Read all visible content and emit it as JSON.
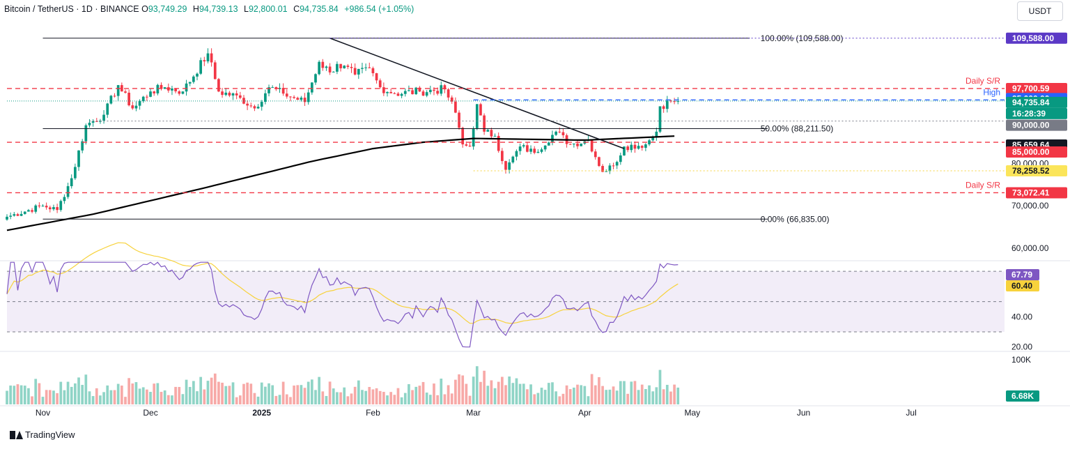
{
  "header": {
    "symbol": "Bitcoin / TetherUS · 1D · BINANCE",
    "o_label": "O",
    "o_value": "93,749.29",
    "h_label": "H",
    "h_value": "94,739.13",
    "l_label": "L",
    "l_value": "92,800.01",
    "c_label": "C",
    "c_value": "94,735.84",
    "change": "+986.54 (+1.05%)"
  },
  "currency_button": "USDT",
  "footer": {
    "brand": "TradingView"
  },
  "chart_data": {
    "type": "candlestick",
    "symbol": "Bitcoin / TetherUS",
    "interval": "1D",
    "exchange": "BINANCE",
    "last_price": 94735.84,
    "countdown": "16:28:39",
    "price_axis": {
      "ylim": [
        57000,
        114000
      ],
      "ticks": [
        "60,000.00",
        "70,000.00",
        "80,000.00"
      ]
    },
    "time_axis": {
      "ticks": [
        "Nov",
        "Dec",
        "2025",
        "Feb",
        "Mar",
        "Apr",
        "May",
        "Jun",
        "Jul"
      ],
      "tick_dates": [
        "2024-11-01",
        "2024-12-01",
        "2025-01-01",
        "2025-02-01",
        "2025-03-01",
        "2025-04-01",
        "2025-05-01",
        "2025-06-01",
        "2025-07-01"
      ],
      "range": [
        "2024-10-22",
        "2025-07-27"
      ]
    },
    "anchors": [
      [
        "2024-10-22",
        67400
      ],
      [
        "2024-11-01",
        70000
      ],
      [
        "2024-11-05",
        69000
      ],
      [
        "2024-11-09",
        76500
      ],
      [
        "2024-11-13",
        89000
      ],
      [
        "2024-11-18",
        91500
      ],
      [
        "2024-11-22",
        98500
      ],
      [
        "2024-11-26",
        93000
      ],
      [
        "2024-12-01",
        97000
      ],
      [
        "2024-12-05",
        98000
      ],
      [
        "2024-12-10",
        97000
      ],
      [
        "2024-12-17",
        106000
      ],
      [
        "2024-12-20",
        97000
      ],
      [
        "2024-12-26",
        95500
      ],
      [
        "2024-12-30",
        93000
      ],
      [
        "2025-01-03",
        98000
      ],
      [
        "2025-01-07",
        96500
      ],
      [
        "2025-01-13",
        94500
      ],
      [
        "2025-01-17",
        104000
      ],
      [
        "2025-01-20",
        101500
      ],
      [
        "2025-01-22",
        103500
      ],
      [
        "2025-01-27",
        101000
      ],
      [
        "2025-01-31",
        102500
      ],
      [
        "2025-02-03",
        98000
      ],
      [
        "2025-02-07",
        96500
      ],
      [
        "2025-02-14",
        97000
      ],
      [
        "2025-02-21",
        97500
      ],
      [
        "2025-02-24",
        92000
      ],
      [
        "2025-02-26",
        84500
      ],
      [
        "2025-02-28",
        84000
      ],
      [
        "2025-03-02",
        94000
      ],
      [
        "2025-03-04",
        87500
      ],
      [
        "2025-03-07",
        86500
      ],
      [
        "2025-03-10",
        78500
      ],
      [
        "2025-03-14",
        84000
      ],
      [
        "2025-03-18",
        82500
      ],
      [
        "2025-03-24",
        87500
      ],
      [
        "2025-03-28",
        84500
      ],
      [
        "2025-04-02",
        85500
      ],
      [
        "2025-04-06",
        78000
      ],
      [
        "2025-04-09",
        79500
      ],
      [
        "2025-04-12",
        84000
      ],
      [
        "2025-04-18",
        84500
      ],
      [
        "2025-04-21",
        87500
      ],
      [
        "2025-04-22",
        93500
      ],
      [
        "2025-04-25",
        94700
      ],
      [
        "2025-04-27",
        94735.84
      ]
    ],
    "ma200": [
      [
        "2024-10-22",
        64200
      ],
      [
        "2024-11-15",
        68000
      ],
      [
        "2024-12-15",
        74000
      ],
      [
        "2025-01-15",
        80500
      ],
      [
        "2025-02-01",
        83500
      ],
      [
        "2025-02-15",
        85000
      ],
      [
        "2025-03-01",
        85900
      ],
      [
        "2025-04-01",
        85500
      ],
      [
        "2025-04-27",
        86500
      ]
    ],
    "trendline": [
      [
        "2025-01-20",
        109588
      ],
      [
        "2025-04-12",
        83500
      ]
    ],
    "fibonacci": [
      {
        "level": "100.00%",
        "price": 109588.0,
        "label": "100.00% (109,588.00)"
      },
      {
        "level": "50.00%",
        "price": 88211.5,
        "label": "50.00% (88,211.50)"
      },
      {
        "level": "0.00%",
        "price": 66835.0,
        "label": "0.00% (66,835.00)"
      }
    ],
    "lines": [
      {
        "price": 109588.0,
        "label": "109,588.00",
        "style": "dotted",
        "color": "#5b39c6"
      },
      {
        "price": 97700.59,
        "label": "97,700.59",
        "style": "dashed",
        "color": "#f23645",
        "annotation": "Daily S/R"
      },
      {
        "price": 95000.0,
        "label": "95,000.00",
        "style": "dashed",
        "color": "#2962ff",
        "annotation": "High"
      },
      {
        "price": 90000.0,
        "label": "90,000.00",
        "style": "dotted",
        "color": "#787b86"
      },
      {
        "price": 85659.64,
        "label": "85,659.64",
        "style": "ma",
        "color": "#000000"
      },
      {
        "price": 85000.0,
        "label": "85,000.00",
        "style": "dashed",
        "color": "#f23645"
      },
      {
        "price": 78258.52,
        "label": "78,258.52",
        "style": "dotted",
        "color": "#f7d23c"
      },
      {
        "price": 73072.41,
        "label": "73,072.41",
        "style": "dashed",
        "color": "#f23645",
        "annotation": "Daily S/R"
      }
    ],
    "rsi": {
      "ticks": [
        "40.00",
        "20.00"
      ],
      "rsi_value": "67.79",
      "ma_value": "60.40",
      "band_upper": 70,
      "band_mid": 50,
      "band_lower": 30,
      "ylim": [
        18,
        77
      ]
    },
    "volume": {
      "tick": "100K",
      "value": "6.68K"
    },
    "colors": {
      "up": "#089981",
      "down": "#f23645",
      "rsi": "#7e57c2",
      "rsi_ma": "#f7d23c",
      "ma200": "#000000"
    }
  }
}
